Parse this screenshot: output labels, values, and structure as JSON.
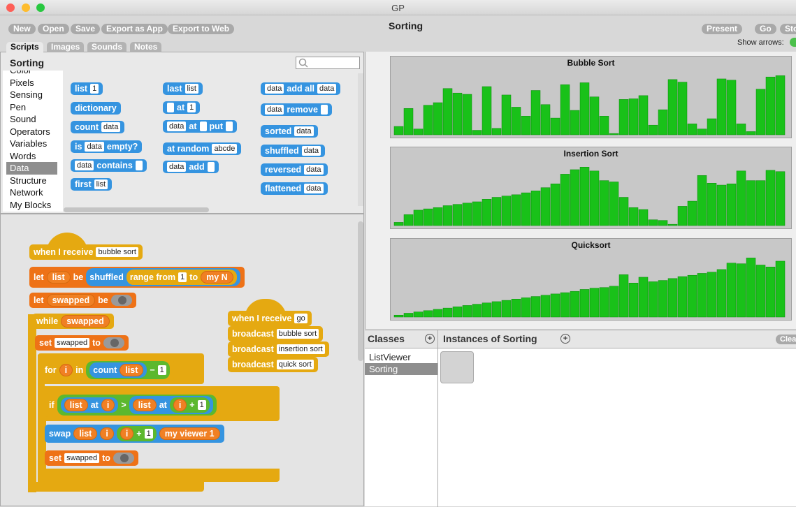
{
  "window_title": "GP",
  "toolbar": {
    "buttons": [
      "New",
      "Open",
      "Save",
      "Export as App",
      "Export to Web"
    ],
    "project": "Sorting",
    "right_buttons": [
      "Present",
      "Go",
      "Stop"
    ],
    "show_arrows": "Show arrows:"
  },
  "tabs": [
    "Scripts",
    "Images",
    "Sounds",
    "Notes"
  ],
  "class_name": "Sorting",
  "categories": [
    "Color",
    "Pixels",
    "Sensing",
    "Pen",
    "Sound",
    "Operators",
    "Variables",
    "Words",
    "Data",
    "Structure",
    "Network",
    "My Blocks"
  ],
  "palette": [
    [
      "list",
      [
        "1"
      ]
    ],
    [
      "dictionary"
    ],
    [
      "count",
      [
        "data"
      ]
    ],
    [
      "is",
      [
        "data"
      ],
      "empty?"
    ],
    [
      [
        "data"
      ],
      "contains",
      []
    ],
    [
      "first",
      [
        "list"
      ]
    ],
    [
      "last",
      [
        "list"
      ]
    ],
    [
      [],
      "at",
      [
        "1"
      ]
    ],
    [
      [
        "data"
      ],
      "at",
      [],
      "put",
      []
    ],
    [
      "at random",
      [
        "abcde"
      ]
    ],
    [
      [
        "data"
      ],
      "add",
      []
    ],
    [
      [
        "data"
      ],
      "add all",
      [
        "data"
      ]
    ],
    [
      [
        "data"
      ],
      "remove",
      []
    ],
    [
      "sorted",
      [
        "data"
      ]
    ],
    [
      "shuffled",
      [
        "data"
      ]
    ],
    [
      "reversed",
      [
        "data"
      ]
    ],
    [
      "flattened",
      [
        "data"
      ]
    ]
  ],
  "scripts": [
    [
      {
        "color": "yellow",
        "p": [
          "when I receive",
          [
            "bubble sort"
          ]
        ]
      },
      {
        "color": "orange",
        "p": [
          "let",
          {
            "var": "list"
          },
          "be",
          {
            "c": "blue",
            "p": [
              "shuffled",
              {
                "c": "yellow",
                "p": [
                  "range from",
                  [
                    "1"
                  ],
                  "to",
                  {
                    "var": "my N"
                  }
                ]
              }
            ]
          }
        ]
      },
      {
        "color": "orange",
        "p": [
          "let",
          {
            "var": "swapped"
          },
          "be",
          {
            "toggle": false
          }
        ]
      },
      {
        "color": "yellow",
        "p": [
          "while",
          {
            "var": "swapped"
          }
        ]
      },
      {
        "color": "orange",
        "p": [
          "set",
          [
            "swapped"
          ],
          "to",
          {
            "toggle": false
          }
        ]
      },
      {
        "color": "yellow",
        "p": [
          "for",
          {
            "var": "i"
          },
          "in",
          {
            "c": "green",
            "p": [
              {
                "c": "blue",
                "p": [
                  "count",
                  {
                    "var": "list"
                  }
                ]
              },
              "−",
              [
                "1"
              ]
            ]
          }
        ]
      },
      {
        "color": "yellow",
        "p": [
          "if",
          {
            "c": "green",
            "p": [
              {
                "c": "blue",
                "p": [
                  {
                    "var": "list"
                  },
                  "at",
                  {
                    "var": "i"
                  }
                ]
              },
              ">",
              {
                "c": "blue",
                "p": [
                  {
                    "var": "list"
                  },
                  "at",
                  {
                    "c": "green",
                    "p": [
                      {
                        "var": "i"
                      },
                      "+",
                      [
                        "1"
                      ]
                    ]
                  }
                ]
              }
            ]
          }
        ]
      },
      {
        "color": "blue",
        "p": [
          "swap",
          {
            "var": "list"
          },
          {
            "var": "i"
          },
          {
            "c": "green",
            "p": [
              {
                "var": "i"
              },
              "+",
              [
                "1"
              ]
            ]
          },
          {
            "var": "my viewer 1"
          }
        ]
      },
      {
        "color": "orange",
        "p": [
          "set",
          [
            "swapped"
          ],
          "to",
          {
            "toggle": false
          }
        ]
      }
    ],
    [
      {
        "color": "yellow",
        "p": [
          "when I receive",
          [
            "go"
          ]
        ]
      },
      {
        "color": "yellow",
        "p": [
          "broadcast",
          [
            "bubble sort"
          ]
        ]
      },
      {
        "color": "yellow",
        "p": [
          "broadcast",
          [
            "insertion sort"
          ]
        ]
      },
      {
        "color": "yellow",
        "p": [
          "broadcast",
          [
            "quick sort"
          ]
        ]
      }
    ]
  ],
  "chart_data": [
    {
      "type": "bar",
      "title": "Bubble Sort",
      "color": "#19c119",
      "ylim": [
        0,
        100
      ],
      "values": [
        13,
        41,
        9,
        46,
        50,
        72,
        65,
        63,
        7,
        75,
        10,
        62,
        43,
        29,
        69,
        47,
        26,
        78,
        38,
        81,
        59,
        29,
        2,
        55,
        56,
        61,
        15,
        39,
        86,
        82,
        17,
        9,
        25,
        87,
        85,
        17,
        5,
        71,
        90,
        92
      ]
    },
    {
      "type": "bar",
      "title": "Insertion Sort",
      "color": "#19c119",
      "ylim": [
        0,
        100
      ],
      "values": [
        5,
        17,
        24,
        26,
        28,
        31,
        33,
        35,
        37,
        41,
        44,
        46,
        48,
        51,
        54,
        59,
        65,
        80,
        87,
        91,
        85,
        70,
        68,
        44,
        28,
        25,
        9,
        8,
        2,
        30,
        38,
        78,
        66,
        63,
        65,
        85,
        70,
        70,
        86,
        84
      ]
    },
    {
      "type": "bar",
      "title": "Quicksort",
      "color": "#19c119",
      "ylim": [
        0,
        100
      ],
      "values": [
        3,
        6,
        8,
        10,
        12,
        14,
        16,
        18,
        20,
        22,
        24,
        26,
        28,
        30,
        32,
        34,
        36,
        38,
        40,
        43,
        45,
        46,
        48,
        66,
        53,
        62,
        55,
        57,
        60,
        63,
        65,
        68,
        70,
        74,
        84,
        83,
        92,
        81,
        78,
        87
      ]
    }
  ],
  "classes": {
    "title": "Classes",
    "items": [
      "ListViewer",
      "Sorting"
    ],
    "instances_title": "Instances of Sorting",
    "clear": "Clear"
  }
}
